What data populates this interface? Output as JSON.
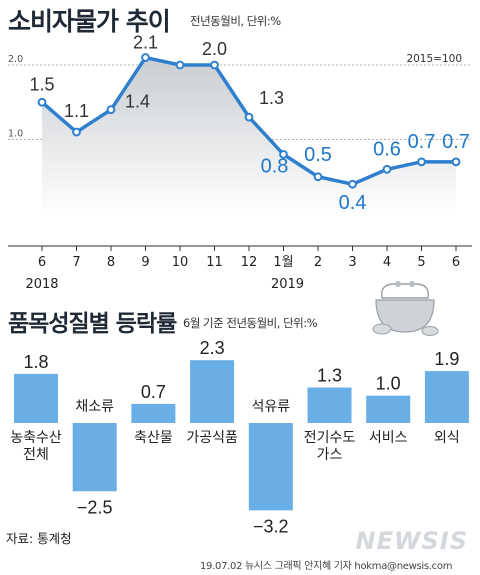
{
  "chart_data": [
    {
      "type": "line",
      "title": "소비자물가 추이",
      "subtitle": "전년동월비, 단위:%",
      "note": "2015=100",
      "x": [
        "6",
        "7",
        "8",
        "9",
        "10",
        "11",
        "12",
        "1월",
        "2",
        "3",
        "4",
        "5",
        "6"
      ],
      "year_labels": [
        "2018",
        "2019"
      ],
      "values": [
        1.5,
        1.1,
        1.4,
        2.1,
        2.0,
        2.0,
        1.3,
        0.8,
        0.5,
        0.4,
        0.6,
        0.7,
        0.7
      ],
      "data_labels": [
        "1.5",
        "1.1",
        "1.4",
        "2.1",
        "",
        "2.0",
        "1.3",
        "0.8",
        "0.5",
        "0.4",
        "0.6",
        "0.7",
        "0.7"
      ],
      "y_ticks": [
        "1.0",
        "2.0"
      ],
      "ylim": [
        0.0,
        2.2
      ],
      "colors": {
        "line": "#2f7fcf",
        "label_2018": "#333333",
        "label_2019": "#1f78c8"
      }
    },
    {
      "type": "bar",
      "title": "품목성질별 등락률",
      "subtitle": "6월 기준 전년동월비, 단위:%",
      "categories": [
        "농축수산\n전체",
        "채소류",
        "축산물",
        "가공식품",
        "석유류",
        "전기수도\n가스",
        "서비스",
        "외식"
      ],
      "values": [
        1.8,
        -2.5,
        0.7,
        2.3,
        -3.2,
        1.3,
        1.0,
        1.9
      ],
      "value_labels": [
        "1.8",
        "−2.5",
        "0.7",
        "2.3",
        "−3.2",
        "1.3",
        "1.0",
        "1.9"
      ],
      "colors": {
        "bar": "#6aaee6"
      }
    }
  ],
  "source": "자료: 통계청",
  "credit": "19.07.02  뉴시스 그래픽 안지혜 기자  hokma@newsis.com",
  "logo": "NEWSIS"
}
